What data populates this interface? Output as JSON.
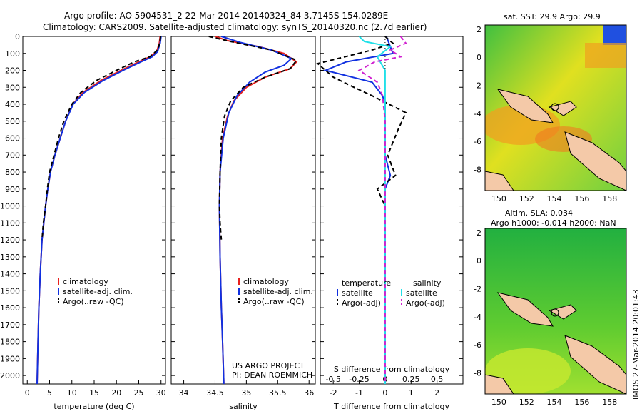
{
  "header": {
    "line1": "Argo profile: AO 5904531_2 22-Mar-2014 20140324_84 3.7145S 154.0289E",
    "line2": "Climatology: CARS2009. Satellite-adjusted climatology: synTS_20140320.nc (2.7d earlier)"
  },
  "footer_stamp": "IMOS 27-Mar-2014 20:01:43",
  "colors": {
    "climatology": "#e8201e",
    "satellite": "#1030e0",
    "argo": "#000000",
    "sat_salinity": "#20e0e8",
    "argo_salinity": "#d020d0"
  },
  "chart_data": [
    {
      "type": "line",
      "id": "temperature",
      "xlabel": "temperature (deg C)",
      "xlim": [
        -1,
        31
      ],
      "ylim": [
        2050,
        0
      ],
      "xticks": [
        0,
        5,
        10,
        15,
        20,
        25,
        30
      ],
      "yticks": [
        0,
        100,
        200,
        300,
        400,
        500,
        600,
        700,
        800,
        900,
        1000,
        1100,
        1200,
        1300,
        1400,
        1500,
        1600,
        1700,
        1800,
        1900,
        2000
      ],
      "legend": [
        "climatology",
        "satellite-adj. clim.",
        "Argo(..raw -QC)"
      ],
      "series": [
        {
          "name": "climatology",
          "color": "#e8201e",
          "dash": "",
          "points": [
            [
              29.8,
              0
            ],
            [
              29.6,
              40
            ],
            [
              29.0,
              90
            ],
            [
              27.5,
              120
            ],
            [
              25,
              150
            ],
            [
              21,
              200
            ],
            [
              16.5,
              260
            ],
            [
              12.5,
              330
            ],
            [
              10.2,
              400
            ],
            [
              8.6,
              500
            ],
            [
              7.4,
              600
            ],
            [
              6.2,
              700
            ],
            [
              5.2,
              800
            ],
            [
              4.6,
              900
            ],
            [
              4.1,
              1000
            ],
            [
              3.3,
              1200
            ],
            [
              2.9,
              1400
            ],
            [
              2.6,
              1600
            ],
            [
              2.4,
              1800
            ],
            [
              2.2,
              2050
            ]
          ]
        },
        {
          "name": "satellite-adj. clim.",
          "color": "#1030e0",
          "dash": "",
          "points": [
            [
              30,
              0
            ],
            [
              29.8,
              40
            ],
            [
              29.2,
              90
            ],
            [
              28,
              120
            ],
            [
              25.5,
              150
            ],
            [
              21.5,
              200
            ],
            [
              17,
              260
            ],
            [
              12.8,
              330
            ],
            [
              10.3,
              400
            ],
            [
              8.6,
              500
            ],
            [
              7.4,
              600
            ],
            [
              6.2,
              700
            ],
            [
              5.2,
              800
            ],
            [
              4.6,
              900
            ],
            [
              4.1,
              1000
            ],
            [
              3.3,
              1200
            ],
            [
              2.9,
              1400
            ],
            [
              2.6,
              1600
            ],
            [
              2.4,
              1800
            ],
            [
              2.2,
              2050
            ]
          ]
        },
        {
          "name": "Argo(..raw -QC)",
          "color": "#000000",
          "dash": "6,4",
          "points": [
            [
              29.9,
              0
            ],
            [
              29.7,
              40
            ],
            [
              29.2,
              80
            ],
            [
              27.5,
              120
            ],
            [
              24,
              150
            ],
            [
              20,
              200
            ],
            [
              15.5,
              260
            ],
            [
              12,
              330
            ],
            [
              10,
              400
            ],
            [
              8.2,
              500
            ],
            [
              7,
              600
            ],
            [
              6,
              700
            ],
            [
              5,
              800
            ],
            [
              4.5,
              900
            ],
            [
              4.1,
              1000
            ],
            [
              3.6,
              1100
            ],
            [
              3.3,
              1200
            ]
          ]
        }
      ]
    },
    {
      "type": "line",
      "id": "salinity",
      "xlabel": "salinity",
      "xlim": [
        33.8,
        36.1
      ],
      "ylim": [
        2050,
        0
      ],
      "xticks": [
        34,
        34.5,
        35,
        35.5,
        36
      ],
      "legend": [
        "climatology",
        "satellite-adj. clim.",
        "Argo(..raw -QC)"
      ],
      "annotation": [
        "US ARGO PROJECT",
        "PI: DEAN ROEMMICH"
      ],
      "series": [
        {
          "name": "climatology",
          "color": "#e8201e",
          "dash": "",
          "points": [
            [
              34.5,
              0
            ],
            [
              34.7,
              25
            ],
            [
              35.2,
              60
            ],
            [
              35.6,
              100
            ],
            [
              35.8,
              150
            ],
            [
              35.7,
              190
            ],
            [
              35.3,
              240
            ],
            [
              35.0,
              300
            ],
            [
              34.8,
              380
            ],
            [
              34.7,
              470
            ],
            [
              34.62,
              600
            ],
            [
              34.58,
              800
            ],
            [
              34.57,
              1000
            ],
            [
              34.58,
              1300
            ],
            [
              34.6,
              1600
            ],
            [
              34.62,
              1800
            ],
            [
              34.64,
              2050
            ]
          ]
        },
        {
          "name": "satellite-adj. clim.",
          "color": "#1030e0",
          "dash": "",
          "points": [
            [
              34.6,
              0
            ],
            [
              34.9,
              35
            ],
            [
              35.4,
              80
            ],
            [
              35.72,
              130
            ],
            [
              35.6,
              170
            ],
            [
              35.3,
              210
            ],
            [
              35.05,
              270
            ],
            [
              34.85,
              350
            ],
            [
              34.72,
              450
            ],
            [
              34.63,
              600
            ],
            [
              34.58,
              800
            ],
            [
              34.57,
              1000
            ],
            [
              34.58,
              1300
            ],
            [
              34.6,
              1600
            ],
            [
              34.62,
              1800
            ],
            [
              34.64,
              2050
            ]
          ]
        },
        {
          "name": "Argo(..raw -QC)",
          "color": "#000000",
          "dash": "6,4",
          "points": [
            [
              34.4,
              0
            ],
            [
              34.75,
              30
            ],
            [
              35.4,
              80
            ],
            [
              35.8,
              140
            ],
            [
              35.7,
              190
            ],
            [
              35.3,
              240
            ],
            [
              34.95,
              300
            ],
            [
              34.75,
              380
            ],
            [
              34.65,
              470
            ],
            [
              34.6,
              600
            ],
            [
              34.58,
              800
            ],
            [
              34.57,
              1000
            ],
            [
              34.58,
              1100
            ],
            [
              34.6,
              1200
            ]
          ]
        }
      ]
    },
    {
      "type": "line",
      "id": "difference",
      "xlabel": "T difference from climatology",
      "xlabel_top": "S difference from climatology",
      "xlim": [
        -2.5,
        3
      ],
      "ylim": [
        2050,
        0
      ],
      "xticks": [
        -2,
        -1,
        0,
        1,
        2
      ],
      "xticks_top": [
        [
          -2,
          "-0.5"
        ],
        [
          -1,
          "-0.25"
        ],
        [
          0,
          "0"
        ],
        [
          1,
          "0.25"
        ],
        [
          2,
          "0.5"
        ]
      ],
      "legend_groups": [
        {
          "title": "temperature",
          "items": [
            "satellite",
            "Argo(-adj)"
          ]
        },
        {
          "title": "salinity",
          "items": [
            "satellite",
            "Argo(-adj)"
          ]
        }
      ],
      "series": [
        {
          "name": "temperature satellite",
          "color": "#1030e0",
          "dash": "",
          "points": [
            [
              0.05,
              0
            ],
            [
              0.2,
              60
            ],
            [
              0.3,
              100
            ],
            [
              -1.5,
              150
            ],
            [
              -2.3,
              200
            ],
            [
              -0.5,
              270
            ],
            [
              -0.1,
              350
            ],
            [
              0,
              400
            ],
            [
              0,
              500
            ],
            [
              0,
              700
            ],
            [
              0.2,
              820
            ],
            [
              0,
              900
            ],
            [
              0,
              2050
            ]
          ]
        },
        {
          "name": "temperature Argo(-adj)",
          "color": "#000000",
          "dash": "6,4",
          "points": [
            [
              0,
              0
            ],
            [
              0.3,
              40
            ],
            [
              -0.5,
              80
            ],
            [
              -2.6,
              160
            ],
            [
              -2,
              240
            ],
            [
              -1.2,
              300
            ],
            [
              -0.5,
              350
            ],
            [
              0.8,
              450
            ],
            [
              0.5,
              550
            ],
            [
              0.1,
              700
            ],
            [
              0.4,
              820
            ],
            [
              -0.3,
              900
            ],
            [
              0,
              1000
            ]
          ]
        },
        {
          "name": "salinity satellite",
          "color": "#20e0e8",
          "dash": "",
          "points": [
            [
              -1,
              0
            ],
            [
              -0.8,
              30
            ],
            [
              0.2,
              60
            ],
            [
              -0.3,
              120
            ],
            [
              0,
              200
            ],
            [
              0,
              400
            ],
            [
              0,
              800
            ],
            [
              0,
              1500
            ],
            [
              0,
              2050
            ]
          ]
        },
        {
          "name": "salinity Argo(-adj)",
          "color": "#d020d0",
          "dash": "6,4",
          "points": [
            [
              0.6,
              0
            ],
            [
              0.8,
              40
            ],
            [
              0.2,
              80
            ],
            [
              0.6,
              120
            ],
            [
              -0.4,
              150
            ],
            [
              -1,
              200
            ],
            [
              -0.3,
              270
            ],
            [
              -0.1,
              350
            ],
            [
              0,
              500
            ],
            [
              0,
              800
            ],
            [
              0,
              1000
            ],
            [
              0,
              1500
            ],
            [
              0,
              2050
            ]
          ]
        }
      ]
    },
    {
      "type": "heatmap",
      "id": "sst_map",
      "title": "sat. SST: 29.9 Argo: 29.9",
      "xlim": [
        149,
        159.2
      ],
      "ylim": [
        -9.5,
        2.3
      ],
      "xticks": [
        150,
        152,
        154,
        156,
        158
      ],
      "yticks": [
        2,
        0,
        -2,
        -4,
        -6,
        -8
      ],
      "marker": [
        154,
        -3.7
      ]
    },
    {
      "type": "heatmap",
      "id": "sla_map",
      "title": "Altim. SLA: 0.034",
      "subtitle": "Argo h1000: -0.014 h2000: NaN",
      "xlim": [
        149,
        159.2
      ],
      "ylim": [
        -9.5,
        2.3
      ],
      "xticks": [
        150,
        152,
        154,
        156,
        158
      ],
      "yticks": [
        2,
        0,
        -2,
        -4,
        -6,
        -8
      ],
      "marker": [
        154,
        -3.7
      ]
    }
  ]
}
